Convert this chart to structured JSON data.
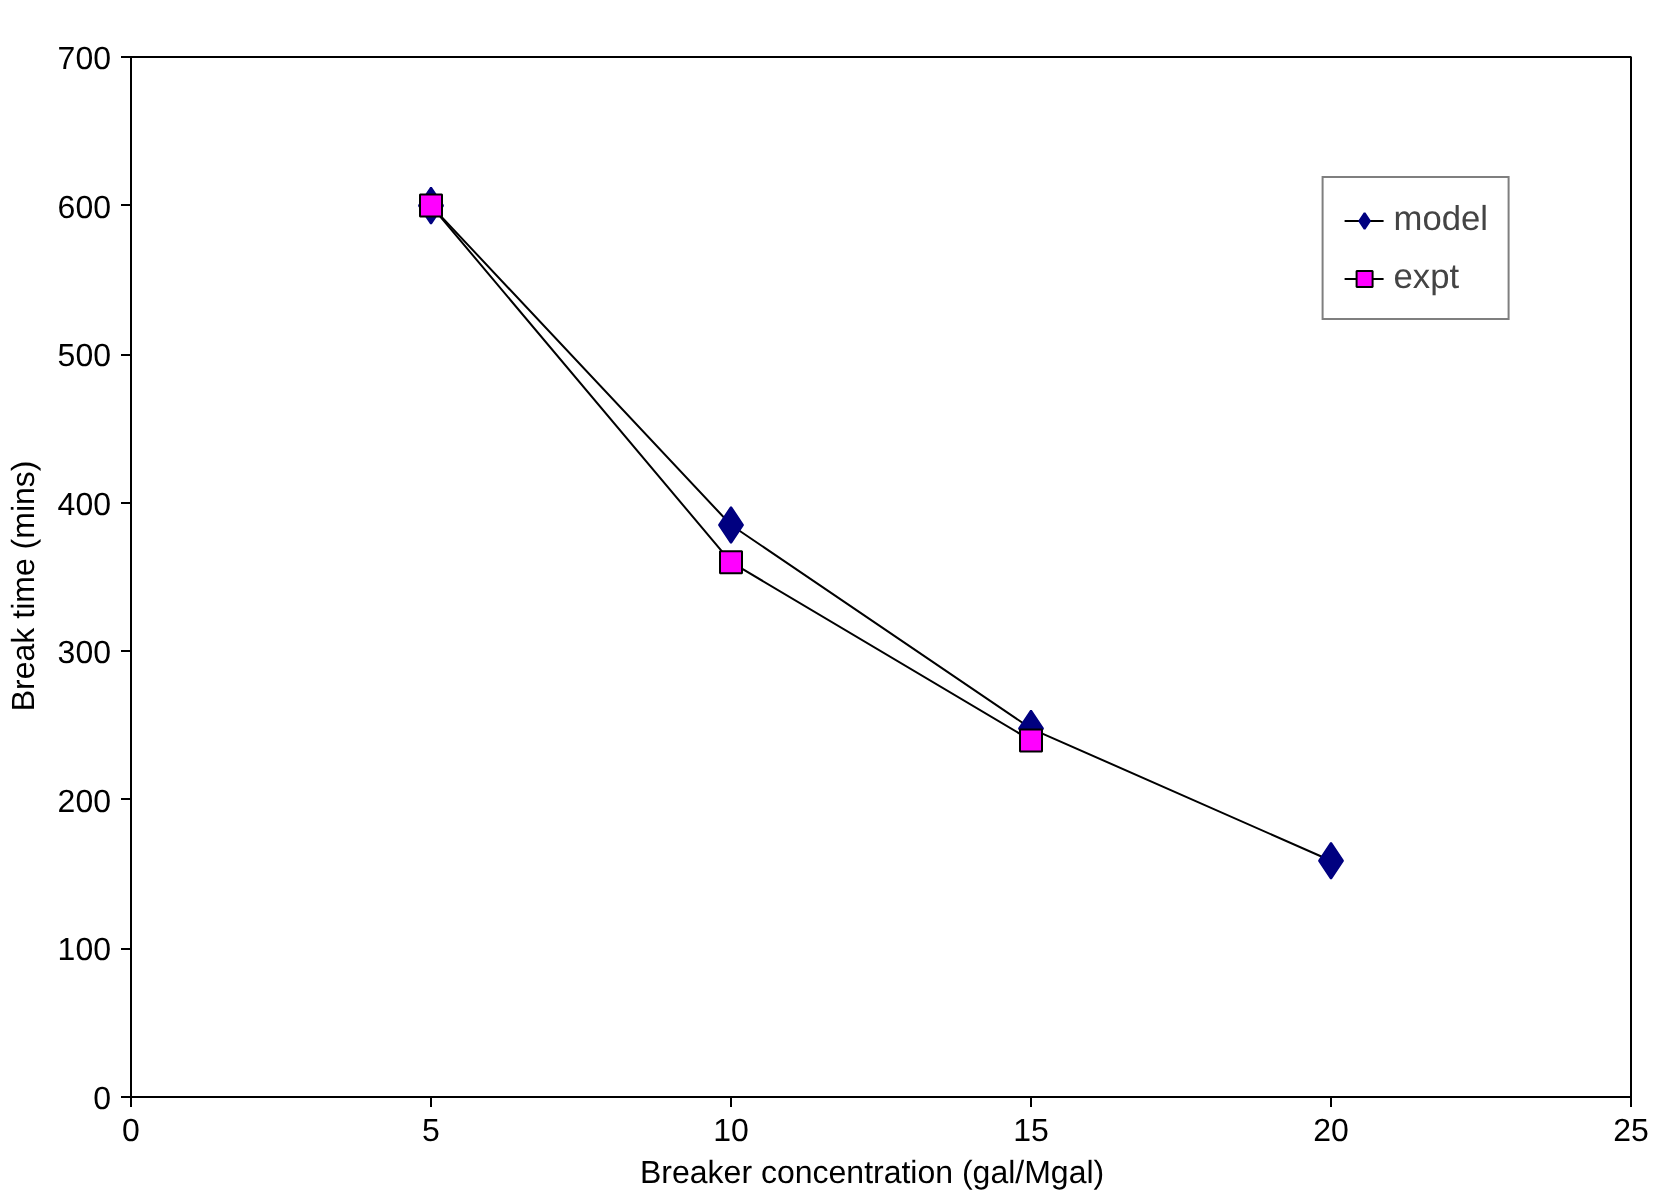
{
  "chart_data": {
    "type": "line",
    "xlabel": "Breaker concentration   (gal/Mgal)",
    "ylabel": "Break  time  (mins)",
    "x": [
      5,
      10,
      15,
      20
    ],
    "series": [
      {
        "name": "model",
        "color": "#000080",
        "marker": "diamond",
        "values": [
          600,
          385,
          248,
          159
        ]
      },
      {
        "name": "expt",
        "color": "#ff00ff",
        "marker": "square",
        "x": [
          5,
          10,
          15
        ],
        "values": [
          600,
          360,
          240
        ]
      }
    ],
    "xlim": [
      0,
      25
    ],
    "xticks": [
      0,
      5,
      10,
      15,
      20,
      25
    ],
    "ylim": [
      0,
      700
    ],
    "yticks": [
      0,
      100,
      200,
      300,
      400,
      500,
      600,
      700
    ],
    "grid": false,
    "legend": "top right"
  }
}
